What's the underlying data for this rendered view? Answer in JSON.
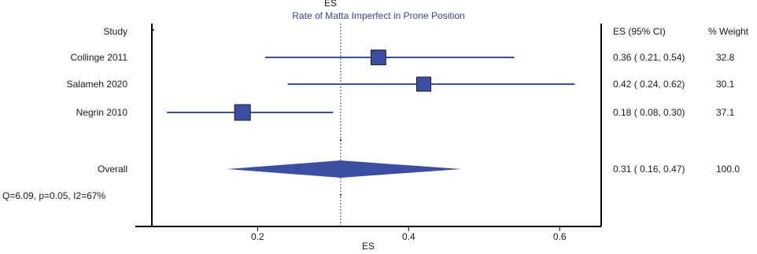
{
  "chart_data": {
    "type": "forest",
    "title": "Rate of Matta Imperfect in Prone Position",
    "top_label": "ES",
    "xlabel": "ES",
    "xlim": [
      0.06,
      0.655
    ],
    "xticks": [
      0.2,
      0.4,
      0.6
    ],
    "xtick_labels": [
      "0.2",
      "0.4",
      "0.6"
    ],
    "reference_value": 0.31,
    "headers": {
      "study": "Study",
      "es": "ES (95% CI)",
      "weight": "% Weight"
    },
    "studies": [
      {
        "name": "Collinge 2011",
        "es": 0.36,
        "lo": 0.21,
        "hi": 0.54,
        "weight": 32.8,
        "ci_text": "0.36 ( 0.21, 0.54)",
        "weight_text": "32.8"
      },
      {
        "name": "Salameh 2020",
        "es": 0.42,
        "lo": 0.24,
        "hi": 0.62,
        "weight": 30.1,
        "ci_text": "0.42 ( 0.24, 0.62)",
        "weight_text": "30.1"
      },
      {
        "name": "Negrin 2010",
        "es": 0.18,
        "lo": 0.08,
        "hi": 0.3,
        "weight": 37.1,
        "ci_text": "0.18 ( 0.08, 0.30)",
        "weight_text": "37.1"
      }
    ],
    "overall": {
      "name": "Overall",
      "es": 0.31,
      "lo": 0.16,
      "hi": 0.47,
      "ci_text": "0.31 ( 0.16, 0.47)",
      "weight_text": "100.0"
    },
    "heterogeneity": "Q=6.09, p=0.05, I2=67%",
    "colors": {
      "marker": "#3a4ea3",
      "marker_stroke": "#1c1c1c",
      "ci_line": "#3a4ea3",
      "title": "#3344aa",
      "axis": "#000000"
    }
  }
}
